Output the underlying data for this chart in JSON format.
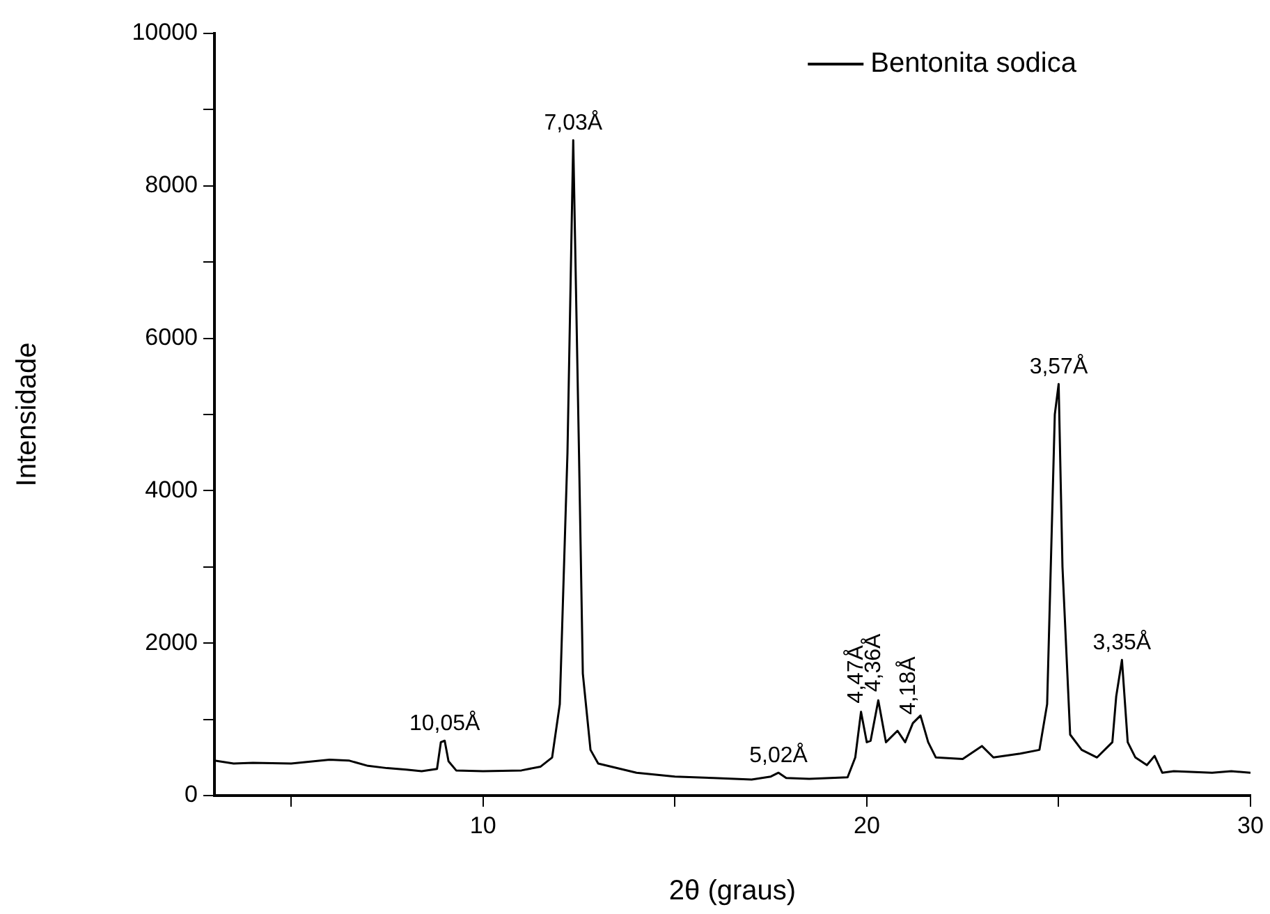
{
  "chart_data": {
    "type": "line",
    "xlabel": "2θ (graus)",
    "ylabel": "Intensidade",
    "legend": "top right",
    "marker": "none",
    "line_style": "solid",
    "grid": false,
    "xlim": [
      3,
      30
    ],
    "xticks": [
      {
        "value": 5,
        "label": null
      },
      10,
      {
        "value": 15,
        "label": null
      },
      20,
      {
        "value": 25,
        "label": null
      },
      30
    ],
    "ylim": [
      0,
      10000
    ],
    "yticks": [
      0,
      {
        "value": 1000,
        "label": null
      },
      2000,
      {
        "value": 3000,
        "label": null
      },
      4000,
      {
        "value": 5000,
        "label": null
      },
      6000,
      {
        "value": 7000,
        "label": null
      },
      8000,
      {
        "value": 9000,
        "label": null
      },
      10000
    ],
    "series": [
      {
        "name": "Bentonita sodica",
        "color": "#000000",
        "x": [
          3.0,
          3.5,
          4.0,
          5.0,
          6.0,
          6.5,
          7.0,
          7.5,
          8.0,
          8.4,
          8.8,
          8.9,
          9.0,
          9.1,
          9.3,
          10.0,
          11.0,
          11.5,
          11.8,
          12.0,
          12.2,
          12.35,
          12.5,
          12.6,
          12.8,
          13.0,
          14.0,
          15.0,
          16.0,
          17.0,
          17.5,
          17.7,
          17.9,
          18.5,
          19.5,
          19.7,
          19.85,
          20.0,
          20.1,
          20.3,
          20.5,
          20.8,
          21.0,
          21.2,
          21.4,
          21.6,
          21.8,
          22.5,
          23.0,
          23.3,
          24.0,
          24.5,
          24.7,
          24.9,
          25.0,
          25.1,
          25.3,
          25.6,
          26.0,
          26.4,
          26.5,
          26.65,
          26.8,
          27.0,
          27.3,
          27.5,
          27.7,
          28.0,
          29.0,
          29.5,
          30.0
        ],
        "values": [
          460,
          420,
          430,
          420,
          470,
          460,
          390,
          360,
          340,
          320,
          350,
          700,
          720,
          450,
          330,
          320,
          330,
          380,
          500,
          1200,
          4500,
          8600,
          4500,
          1600,
          600,
          420,
          300,
          250,
          230,
          210,
          250,
          300,
          230,
          220,
          240,
          500,
          1100,
          700,
          720,
          1250,
          700,
          850,
          700,
          950,
          1050,
          700,
          500,
          480,
          650,
          500,
          550,
          600,
          1200,
          5000,
          5400,
          3000,
          800,
          600,
          500,
          700,
          1300,
          1780,
          700,
          500,
          400,
          520,
          300,
          320,
          300,
          320,
          300
        ]
      }
    ],
    "annotations": [
      {
        "text": "10,05Å",
        "x": 9.0,
        "y": 720
      },
      {
        "text": "7,03Å",
        "x": 12.35,
        "y": 8600
      },
      {
        "text": "5,02Å",
        "x": 17.7,
        "y": 300
      },
      {
        "text": "4,47Å",
        "x": 19.85,
        "y": 1100
      },
      {
        "text": "4,36Å",
        "x": 20.3,
        "y": 1250
      },
      {
        "text": "4,18Å",
        "x": 21.2,
        "y": 950
      },
      {
        "text": "3,57Å",
        "x": 25.0,
        "y": 5400
      },
      {
        "text": "3,35Å",
        "x": 26.65,
        "y": 1780
      }
    ]
  }
}
